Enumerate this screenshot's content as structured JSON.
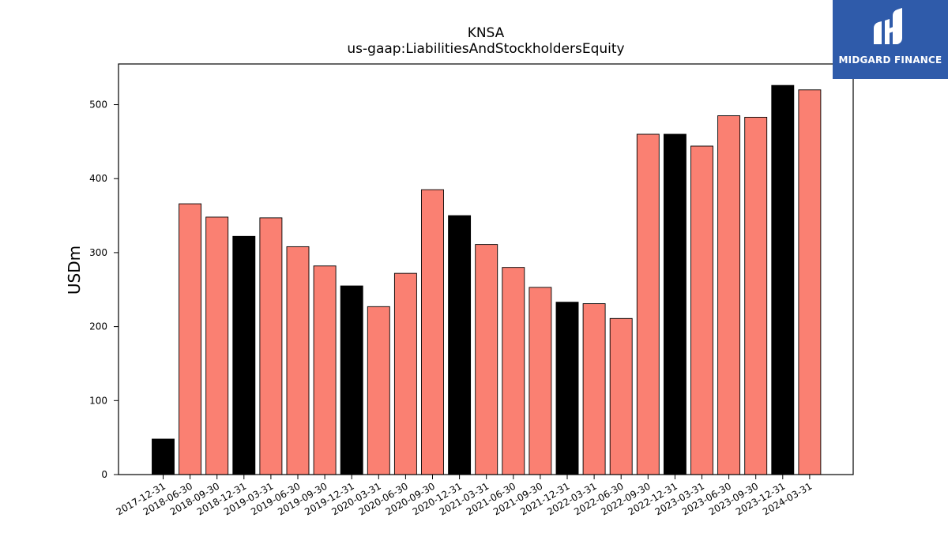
{
  "chart_data": {
    "type": "bar",
    "title": "KNSA",
    "subtitle": "us-gaap:LiabilitiesAndStockholdersEquity",
    "xlabel": "",
    "ylabel": "USDm",
    "ylim": [
      0,
      555
    ],
    "yticks": [
      0,
      100,
      200,
      300,
      400,
      500
    ],
    "grid": false,
    "categories": [
      "2017-12-31",
      "2018-06-30",
      "2018-09-30",
      "2018-12-31",
      "2019-03-31",
      "2019-06-30",
      "2019-09-30",
      "2019-12-31",
      "2020-03-31",
      "2020-06-30",
      "2020-09-30",
      "2020-12-31",
      "2021-03-31",
      "2021-06-30",
      "2021-09-30",
      "2021-12-31",
      "2022-03-31",
      "2022-06-30",
      "2022-09-30",
      "2022-12-31",
      "2023-03-31",
      "2023-06-30",
      "2023-09-30",
      "2023-12-31",
      "2024-03-31"
    ],
    "values": [
      48,
      366,
      348,
      322,
      347,
      308,
      282,
      255,
      227,
      272,
      385,
      350,
      311,
      280,
      253,
      233,
      231,
      211,
      460,
      460,
      444,
      485,
      483,
      526,
      520
    ],
    "annual": [
      true,
      false,
      false,
      true,
      false,
      false,
      false,
      true,
      false,
      false,
      false,
      true,
      false,
      false,
      false,
      true,
      false,
      false,
      false,
      true,
      false,
      false,
      false,
      true,
      false
    ],
    "colors": {
      "annual": "#000000",
      "quarter": "#fa8072",
      "edge": "#000000"
    }
  },
  "logo": {
    "text": "MIDGARD FINANCE",
    "background": "#2f5baa"
  }
}
